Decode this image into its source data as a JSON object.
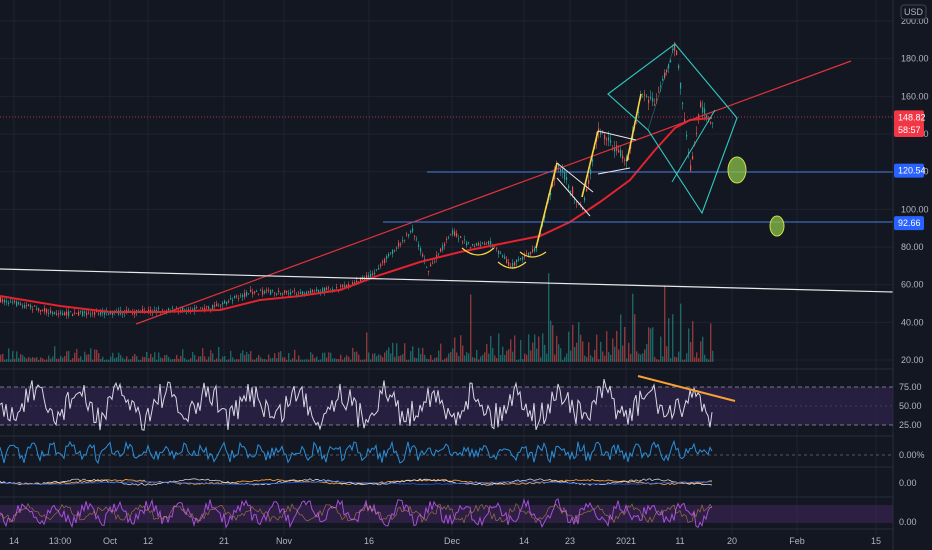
{
  "currency": "USD",
  "price_axis": {
    "labels": [
      "200.00",
      "180.00",
      "160.00",
      "140.00",
      "120.00",
      "100.00",
      "80.00",
      "60.00",
      "40.00",
      "20.00"
    ],
    "values": [
      200,
      180,
      160,
      140,
      120,
      100,
      80,
      60,
      40,
      20
    ]
  },
  "price_tags": [
    {
      "label": "148.82",
      "value": 148.82,
      "color": "#f23645"
    },
    {
      "label": "58:57",
      "value": 143.2,
      "color": "#f23645"
    },
    {
      "label": "120.54",
      "value": 120.54,
      "color": "#2962ff"
    },
    {
      "label": "92.66",
      "value": 92.66,
      "color": "#2962ff"
    }
  ],
  "rsi_axis": {
    "labels": [
      "75.00",
      "50.00",
      "25.00"
    ],
    "values": [
      75,
      50,
      25
    ]
  },
  "ind2_axis": {
    "label": "0.00%"
  },
  "ind3_axis": {
    "label": "0.00"
  },
  "ind4_axis": {
    "label": "0.00"
  },
  "time_axis": {
    "labels": [
      "14",
      "13:00",
      "Oct",
      "12",
      "21",
      "Nov",
      "16",
      "Dec",
      "14",
      "23",
      "2021",
      "11",
      "20",
      "Feb",
      "15"
    ]
  },
  "colors": {
    "background": "#131722",
    "grid": "#1f2330",
    "ma_red": "#e3232e",
    "trend_red": "#e0333b",
    "level_blue": "#4a7bd9",
    "white": "#ffffff",
    "yellow": "#f5d742",
    "cyan": "#31c9c0",
    "orange": "#f7a035",
    "green_circle": "#8bc34a",
    "rsi_band": "#2a2145",
    "rsi_line": "#d8d8e6",
    "ind2_line": "#2a8fd9",
    "ind4_line": "#a64fd9"
  }
}
